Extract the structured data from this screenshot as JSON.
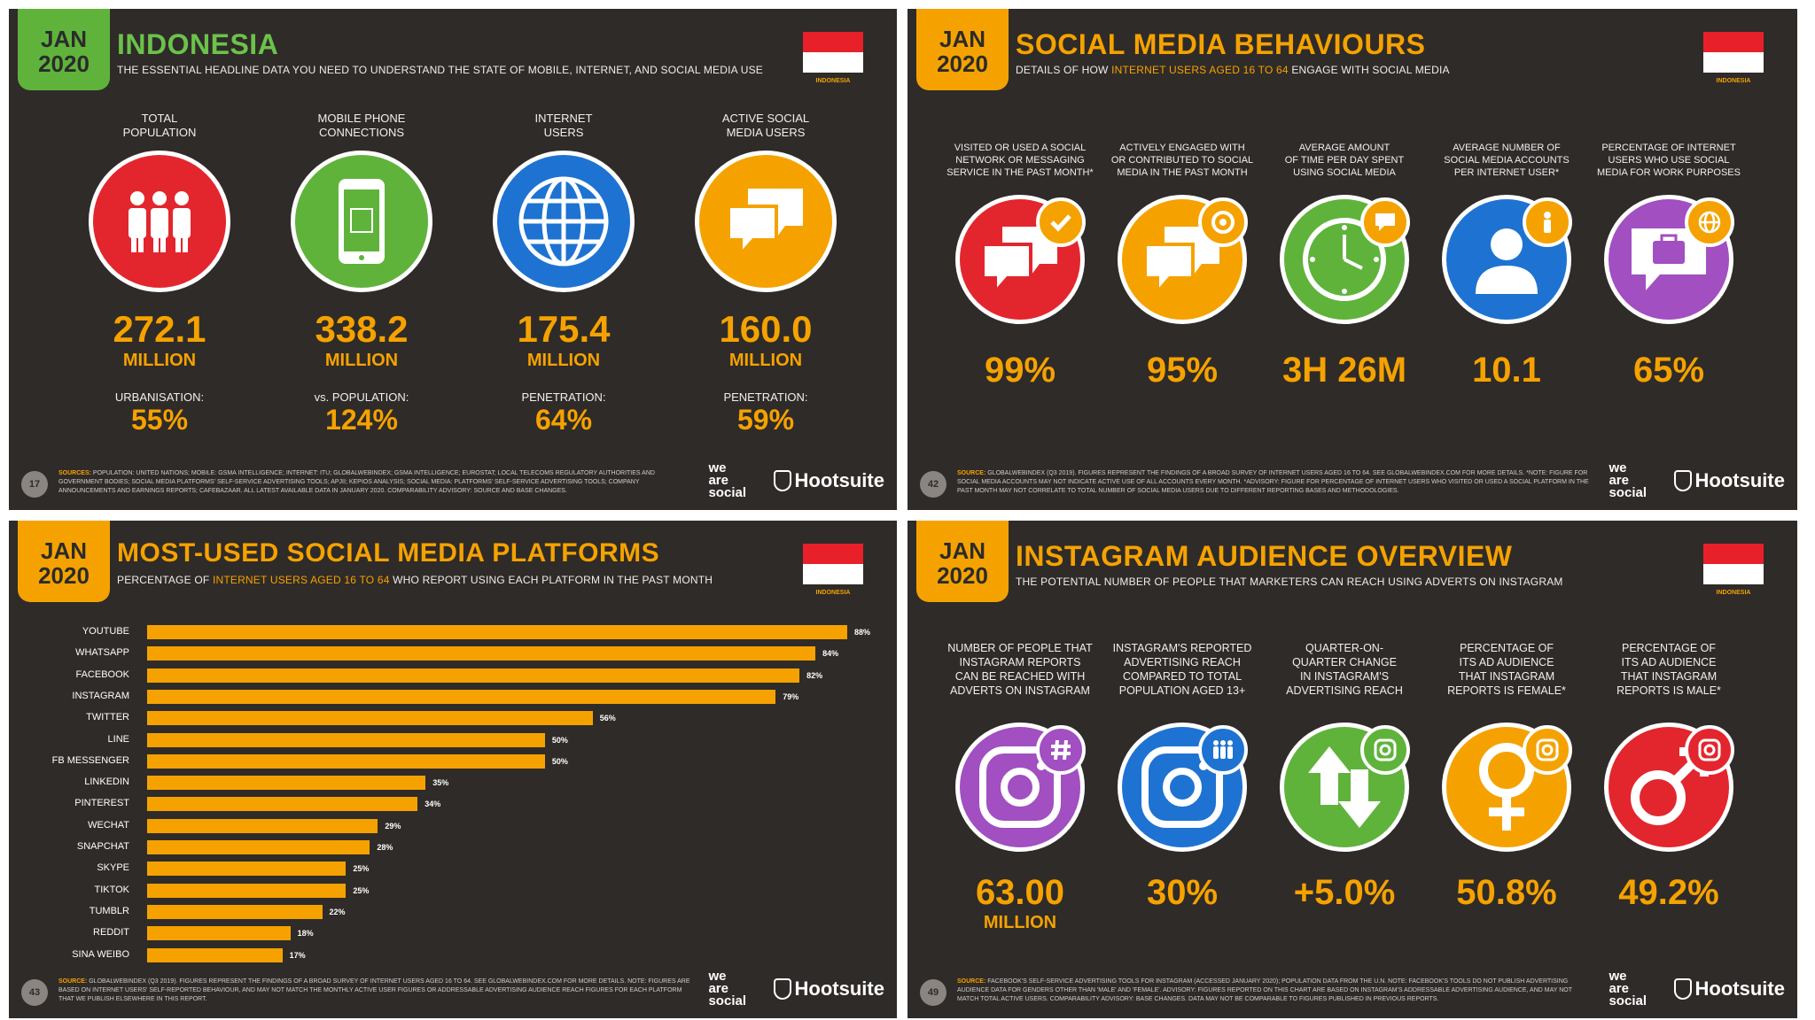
{
  "panel1": {
    "badge_month": "JAN",
    "badge_year": "2020",
    "title": "INDONESIA",
    "subtitle": "THE ESSENTIAL HEADLINE DATA YOU NEED TO UNDERSTAND THE STATE OF MOBILE, INTERNET, AND SOCIAL MEDIA USE",
    "flag_label": "INDONESIA",
    "stats": [
      {
        "label_l1": "TOTAL",
        "label_l2": "POPULATION",
        "value": "272.1",
        "unit": "MILLION",
        "sublabel": "URBANISATION:",
        "subvalue": "55%",
        "color": "#e3262d"
      },
      {
        "label_l1": "MOBILE PHONE",
        "label_l2": "CONNECTIONS",
        "value": "338.2",
        "unit": "MILLION",
        "sublabel": "vs. POPULATION:",
        "subvalue": "124%",
        "color": "#5fb33b"
      },
      {
        "label_l1": "INTERNET",
        "label_l2": "USERS",
        "value": "175.4",
        "unit": "MILLION",
        "sublabel": "PENETRATION:",
        "subvalue": "64%",
        "color": "#1e73d2"
      },
      {
        "label_l1": "ACTIVE SOCIAL",
        "label_l2": "MEDIA USERS",
        "value": "160.0",
        "unit": "MILLION",
        "sublabel": "PENETRATION:",
        "subvalue": "59%",
        "color": "#f5a200"
      }
    ],
    "page": "17",
    "sources_label": "SOURCES:",
    "sources": "POPULATION: UNITED NATIONS; MOBILE: GSMA INTELLIGENCE; INTERNET: ITU; GLOBALWEBINDEX; GSMA INTELLIGENCE; EUROSTAT; LOCAL TELECOMS REGULATORY AUTHORITIES AND GOVERNMENT BODIES; SOCIAL MEDIA PLATFORMS' SELF-SERVICE ADVERTISING TOOLS; APJII; KEPIOS ANALYSIS; SOCIAL MEDIA: PLATFORMS' SELF-SERVICE ADVERTISING TOOLS; COMPANY ANNOUNCEMENTS AND EARNINGS REPORTS; CAFEBAZAAR. ALL LATEST AVAILABLE DATA IN JANUARY 2020. COMPARABILITY ADVISORY: SOURCE AND BASE CHANGES."
  },
  "panel2": {
    "badge_month": "JAN",
    "badge_year": "2020",
    "title": "SOCIAL MEDIA BEHAVIOURS",
    "sub_a": "DETAILS OF HOW ",
    "sub_hl": "INTERNET USERS AGED 16 TO 64",
    "sub_b": " ENGAGE WITH SOCIAL MEDIA",
    "flag_label": "INDONESIA",
    "stats": [
      {
        "l1": "VISITED OR USED A SOCIAL",
        "l2": "NETWORK OR MESSAGING",
        "l3": "SERVICE IN THE PAST MONTH*",
        "value": "99%",
        "color": "#e3262d",
        "mini": "#f5a200",
        "icon": "check-icon"
      },
      {
        "l1": "ACTIVELY ENGAGED WITH",
        "l2": "OR CONTRIBUTED TO SOCIAL",
        "l3": "MEDIA IN THE PAST MONTH",
        "value": "95%",
        "color": "#f5a200",
        "mini": "#f5a200",
        "icon": "target-icon"
      },
      {
        "l1": "AVERAGE AMOUNT",
        "l2": "OF TIME PER DAY SPENT",
        "l3": "USING SOCIAL MEDIA",
        "value": "3H 26M",
        "color": "#5fb33b",
        "mini": "#f5a200",
        "icon": "chat-icon"
      },
      {
        "l1": "AVERAGE NUMBER OF",
        "l2": "SOCIAL MEDIA ACCOUNTS",
        "l3": "PER INTERNET USER*",
        "value": "10.1",
        "color": "#1e73d2",
        "mini": "#f5a200",
        "icon": "person-icon"
      },
      {
        "l1": "PERCENTAGE OF INTERNET",
        "l2": "USERS WHO USE SOCIAL",
        "l3": "MEDIA FOR WORK PURPOSES",
        "value": "65%",
        "color": "#a14fc1",
        "mini": "#f5a200",
        "icon": "globe-icon"
      }
    ],
    "page": "42",
    "source_label": "SOURCE:",
    "source": "GLOBALWEBINDEX (Q3 2019). FIGURES REPRESENT THE FINDINGS OF A BROAD SURVEY OF INTERNET USERS AGED 16 TO 64. SEE GLOBALWEBINDEX.COM FOR MORE DETAILS. *NOTE: FIGURE FOR SOCIAL MEDIA ACCOUNTS MAY NOT INDICATE ACTIVE USE OF ALL ACCOUNTS EVERY MONTH. *ADVISORY: FIGURE FOR PERCENTAGE OF INTERNET USERS WHO VISITED OR USED A SOCIAL PLATFORM IN THE PAST MONTH MAY NOT CORRELATE TO TOTAL NUMBER OF SOCIAL MEDIA USERS DUE TO DIFFERENT REPORTING BASES AND METHODOLOGIES."
  },
  "panel3": {
    "badge_month": "JAN",
    "badge_year": "2020",
    "title": "MOST-USED SOCIAL MEDIA PLATFORMS",
    "sub_a": "PERCENTAGE OF ",
    "sub_hl": "INTERNET USERS AGED 16 TO 64",
    "sub_b": " WHO REPORT USING EACH PLATFORM IN THE PAST MONTH",
    "flag_label": "INDONESIA",
    "page": "43",
    "source_label": "SOURCE:",
    "source": "GLOBALWEBINDEX (Q3 2019). FIGURES REPRESENT THE FINDINGS OF A BROAD SURVEY OF INTERNET USERS AGED 16 TO 64. SEE GLOBALWEBINDEX.COM FOR MORE DETAILS. NOTE: FIGURES ARE BASED ON INTERNET USERS' SELF-REPORTED BEHAVIOUR, AND MAY NOT MATCH THE MONTHLY ACTIVE USER FIGURES OR ADDRESSABLE ADVERTISING AUDIENCE REACH FIGURES FOR EACH PLATFORM THAT WE PUBLISH ELSEWHERE IN THIS REPORT."
  },
  "chart_data": {
    "type": "bar",
    "title": "MOST-USED SOCIAL MEDIA PLATFORMS",
    "categories": [
      "YOUTUBE",
      "WHATSAPP",
      "FACEBOOK",
      "INSTAGRAM",
      "TWITTER",
      "LINE",
      "FB MESSENGER",
      "LINKEDIN",
      "PINTEREST",
      "WECHAT",
      "SNAPCHAT",
      "SKYPE",
      "TIKTOK",
      "TUMBLR",
      "REDDIT",
      "SINA WEIBO"
    ],
    "values": [
      88,
      84,
      82,
      79,
      56,
      50,
      50,
      35,
      34,
      29,
      28,
      25,
      25,
      22,
      18,
      17
    ],
    "labels": [
      "88%",
      "84%",
      "82%",
      "79%",
      "56%",
      "50%",
      "50%",
      "35%",
      "34%",
      "29%",
      "28%",
      "25%",
      "25%",
      "22%",
      "18%",
      "17%"
    ],
    "xlim": [
      0,
      88
    ],
    "color": "#f5a200"
  },
  "panel4": {
    "badge_month": "JAN",
    "badge_year": "2020",
    "title": "INSTAGRAM AUDIENCE OVERVIEW",
    "subtitle": "THE POTENTIAL NUMBER OF PEOPLE THAT MARKETERS CAN REACH USING ADVERTS ON INSTAGRAM",
    "flag_label": "INDONESIA",
    "stats": [
      {
        "l1": "NUMBER OF PEOPLE THAT",
        "l2": "INSTAGRAM REPORTS",
        "l3": "CAN BE REACHED WITH",
        "l4": "ADVERTS ON INSTAGRAM",
        "value": "63.00",
        "unit": "MILLION",
        "color": "#a14fc1"
      },
      {
        "l1": "INSTAGRAM'S REPORTED",
        "l2": "ADVERTISING REACH",
        "l3": "COMPARED TO TOTAL",
        "l4": "POPULATION AGED 13+",
        "value": "30%",
        "unit": "",
        "color": "#1e73d2"
      },
      {
        "l1": "QUARTER-ON-",
        "l2": "QUARTER CHANGE",
        "l3": "IN INSTAGRAM'S",
        "l4": "ADVERTISING REACH",
        "value": "+5.0%",
        "unit": "",
        "color": "#5fb33b"
      },
      {
        "l1": "PERCENTAGE OF",
        "l2": "ITS AD AUDIENCE",
        "l3": "THAT INSTAGRAM",
        "l4": "REPORTS IS FEMALE*",
        "value": "50.8%",
        "unit": "",
        "color": "#f5a200"
      },
      {
        "l1": "PERCENTAGE OF",
        "l2": "ITS AD AUDIENCE",
        "l3": "THAT INSTAGRAM",
        "l4": "REPORTS IS MALE*",
        "value": "49.2%",
        "unit": "",
        "color": "#e3262d"
      }
    ],
    "page": "49",
    "source_label": "SOURCE:",
    "source": "FACEBOOK'S SELF-SERVICE ADVERTISING TOOLS FOR INSTAGRAM (ACCESSED JANUARY 2020); POPULATION DATA FROM THE U.N. NOTE: FACEBOOK'S TOOLS DO NOT PUBLISH ADVERTISING AUDIENCE DATA FOR GENDERS OTHER THAN 'MALE' AND 'FEMALE'. ADVISORY: FIGURES REPORTED ON THIS CHART ARE BASED ON INSTAGRAM'S ADDRESSABLE ADVERTISING AUDIENCE, AND MAY NOT MATCH TOTAL ACTIVE USERS. COMPARABILITY ADVISORY: BASE CHANGES. DATA MAY NOT BE COMPARABLE TO FIGURES PUBLISHED IN PREVIOUS REPORTS."
  },
  "brand": {
    "we_l1": "we",
    "we_l2": "are",
    "we_l3": "social",
    "hootsuite": "Hootsuite"
  }
}
